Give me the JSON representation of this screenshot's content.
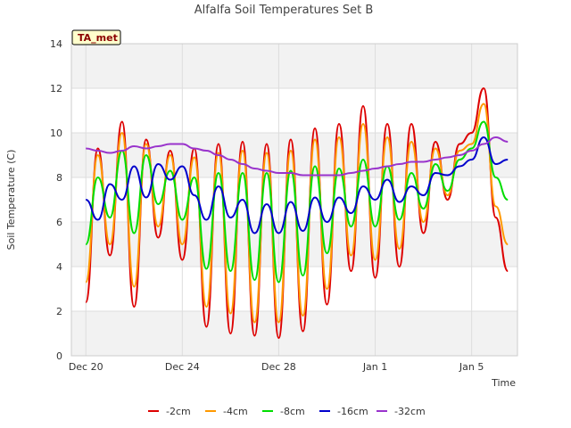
{
  "chart_data": {
    "type": "line",
    "title": "Alfalfa Soil Temperatures Set B",
    "xlabel": "Time",
    "ylabel": "Soil Temperature (C)",
    "badge": "TA_met",
    "ylim": [
      0,
      14
    ],
    "yticks": [
      0,
      2,
      4,
      6,
      8,
      10,
      12,
      14
    ],
    "xlim_days": [
      -0.6,
      17.9
    ],
    "xticks": [
      {
        "day": 0,
        "label": "Dec 20"
      },
      {
        "day": 4,
        "label": "Dec 24"
      },
      {
        "day": 8,
        "label": "Dec 28"
      },
      {
        "day": 12,
        "label": "Jan 1"
      },
      {
        "day": 16,
        "label": "Jan 5"
      }
    ],
    "x_days": [
      0,
      0.5,
      1,
      1.5,
      2,
      2.5,
      3,
      3.5,
      4,
      4.5,
      5,
      5.5,
      6,
      6.5,
      7,
      7.5,
      8,
      8.5,
      9,
      9.5,
      10,
      10.5,
      11,
      11.5,
      12,
      12.5,
      13,
      13.5,
      14,
      14.5,
      15,
      15.5,
      16,
      16.5,
      17,
      17.5
    ],
    "grid": true,
    "legend_position": "bottom",
    "series": [
      {
        "name": "-2cm",
        "color": "#dd0000",
        "values": [
          2.4,
          9.3,
          4.5,
          10.5,
          2.2,
          9.7,
          5.3,
          9.2,
          4.3,
          9.3,
          1.3,
          9.5,
          1.0,
          9.6,
          0.9,
          9.5,
          0.8,
          9.7,
          1.1,
          10.2,
          2.3,
          10.4,
          3.8,
          11.2,
          3.5,
          10.4,
          4.0,
          10.4,
          5.5,
          9.6,
          7.0,
          9.5,
          10.0,
          12.0,
          6.2,
          3.8
        ]
      },
      {
        "name": "-4cm",
        "color": "#ff9900",
        "values": [
          3.3,
          9.0,
          5.0,
          10.0,
          3.1,
          9.5,
          5.8,
          9.0,
          5.0,
          8.9,
          2.2,
          9.1,
          1.9,
          9.2,
          1.5,
          9.1,
          1.5,
          9.2,
          1.8,
          9.7,
          3.0,
          9.8,
          4.5,
          10.4,
          4.3,
          9.8,
          4.8,
          9.6,
          6.0,
          9.3,
          7.2,
          9.2,
          9.5,
          11.3,
          6.7,
          5.0
        ]
      },
      {
        "name": "-8cm",
        "color": "#00dd00",
        "values": [
          5.0,
          8.0,
          6.2,
          9.2,
          5.5,
          9.0,
          6.8,
          8.3,
          6.1,
          8.0,
          3.9,
          8.2,
          3.8,
          8.2,
          3.4,
          8.2,
          3.3,
          8.3,
          3.6,
          8.5,
          4.6,
          8.4,
          5.8,
          8.8,
          5.8,
          8.5,
          6.1,
          8.2,
          6.6,
          8.6,
          7.4,
          8.8,
          9.3,
          10.5,
          8.0,
          7.0
        ]
      },
      {
        "name": "-16cm",
        "color": "#0000cc",
        "values": [
          7.0,
          6.1,
          7.7,
          7.0,
          8.5,
          7.1,
          8.6,
          7.9,
          8.5,
          7.2,
          6.1,
          7.6,
          6.2,
          7.0,
          5.5,
          6.8,
          5.5,
          6.9,
          5.6,
          7.1,
          6.0,
          7.1,
          6.4,
          7.6,
          7.0,
          7.9,
          6.9,
          7.6,
          7.2,
          8.2,
          8.1,
          8.5,
          8.8,
          9.8,
          8.6,
          8.8
        ]
      },
      {
        "name": "-32cm",
        "color": "#9933cc",
        "values": [
          9.3,
          9.2,
          9.1,
          9.2,
          9.4,
          9.3,
          9.4,
          9.5,
          9.5,
          9.3,
          9.2,
          9.0,
          8.8,
          8.6,
          8.4,
          8.3,
          8.2,
          8.2,
          8.1,
          8.1,
          8.1,
          8.1,
          8.2,
          8.3,
          8.4,
          8.5,
          8.6,
          8.7,
          8.7,
          8.8,
          8.9,
          9.0,
          9.2,
          9.5,
          9.8,
          9.6
        ]
      }
    ]
  }
}
